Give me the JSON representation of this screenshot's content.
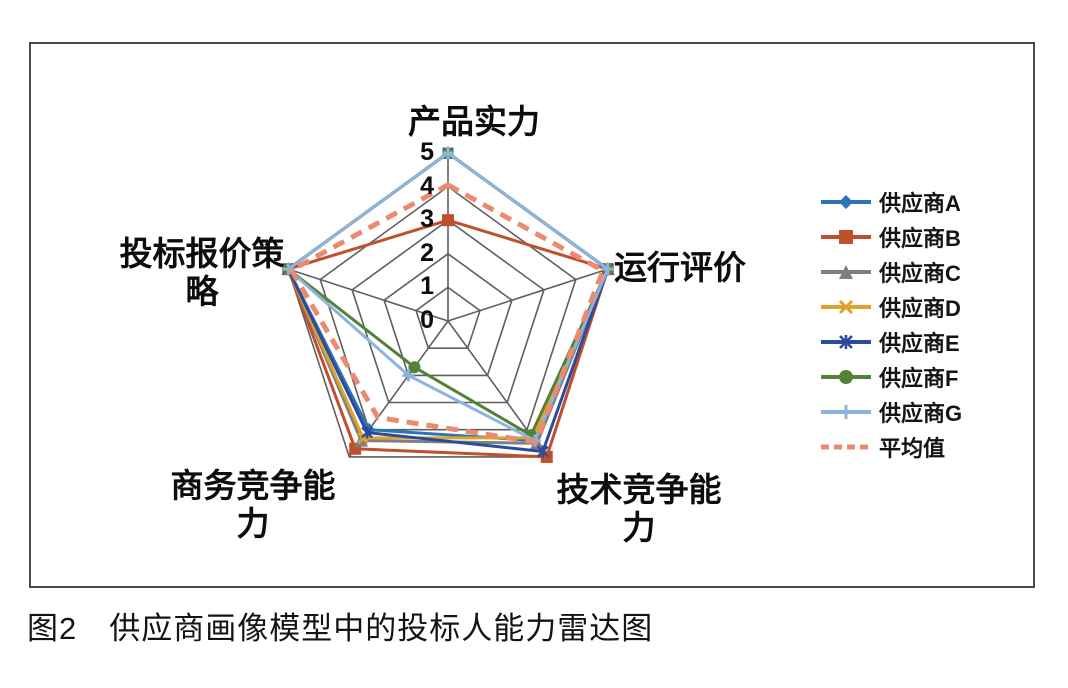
{
  "figure": {
    "caption": "图2　供应商画像模型中的投标人能力雷达图"
  },
  "chart_data": {
    "type": "radar",
    "categories": [
      "产品实力",
      "运行评价",
      "技术竞争能力",
      "商务竞争能力",
      "投标报价策略"
    ],
    "axis_display_labels": [
      "产品实力",
      "运行评价",
      "技术竞争能\n力",
      "商务竞争能\n力",
      "投标报价策\n略"
    ],
    "value_range": [
      0,
      5
    ],
    "ticks": [
      {
        "label": "5",
        "value": 5
      },
      {
        "label": "4",
        "value": 4
      },
      {
        "label": "3",
        "value": 3
      },
      {
        "label": "2",
        "value": 2
      },
      {
        "label": "1",
        "value": 1
      },
      {
        "label": "0",
        "value": 0
      }
    ],
    "grid": true,
    "grid_color": "#5f5f5f",
    "legend_position": "right",
    "series": [
      {
        "name": "供应商A",
        "color": "#2E74B5",
        "marker": "diamond",
        "dashed": false,
        "values": [
          5,
          5,
          4.4,
          4.0,
          5
        ]
      },
      {
        "name": "供应商B",
        "color": "#C04F2C",
        "marker": "square",
        "dashed": false,
        "values": [
          3,
          5,
          5.0,
          4.7,
          5
        ]
      },
      {
        "name": "供应商C",
        "color": "#7F7F7F",
        "marker": "triangle",
        "dashed": false,
        "values": [
          5,
          5,
          4.5,
          4.4,
          5
        ]
      },
      {
        "name": "供应商D",
        "color": "#DFA32C",
        "marker": "x",
        "dashed": false,
        "values": [
          5,
          5,
          4.3,
          4.3,
          5
        ]
      },
      {
        "name": "供应商E",
        "color": "#2B4C9B",
        "marker": "asterisk",
        "dashed": false,
        "values": [
          5,
          5,
          4.8,
          4.1,
          5
        ]
      },
      {
        "name": "供应商F",
        "color": "#538135",
        "marker": "circle",
        "dashed": false,
        "values": [
          5,
          5,
          4.2,
          1.7,
          5
        ]
      },
      {
        "name": "供应商G",
        "color": "#8DB4DC",
        "marker": "plus",
        "dashed": false,
        "values": [
          5,
          5,
          4.4,
          2.0,
          5
        ]
      },
      {
        "name": "平均值",
        "color": "#EC8A70",
        "marker": "none",
        "dashed": true,
        "values": [
          4.05,
          4.85,
          4.45,
          3.55,
          4.9
        ]
      }
    ]
  }
}
